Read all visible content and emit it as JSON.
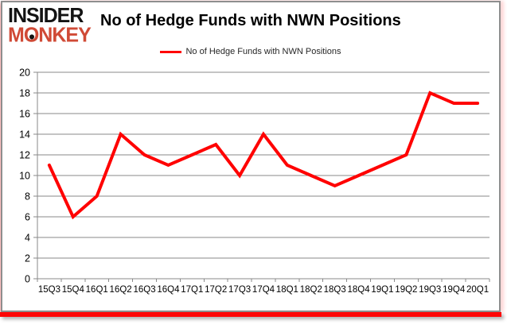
{
  "logo": {
    "line1": "INSIDER",
    "line2_m": "M",
    "line2_o": "O",
    "line2_rest": "NKEY"
  },
  "title": "No of Hedge Funds with NWN Positions",
  "legend": {
    "label": "No of Hedge Funds with NWN Positions"
  },
  "colors": {
    "line_red": "#ff0000",
    "logo_red": "#d04a36",
    "grid_gray": "#8a8a8a",
    "border_gray": "#8e8e8e",
    "band_red": "#fe0505"
  },
  "chart_data": {
    "type": "line",
    "title": "No of Hedge Funds with NWN Positions",
    "categories": [
      "15Q3",
      "15Q4",
      "16Q1",
      "16Q2",
      "16Q3",
      "16Q4",
      "17Q1",
      "17Q2",
      "17Q3",
      "17Q4",
      "18Q1",
      "18Q2",
      "18Q3",
      "18Q4",
      "19Q1",
      "19Q2",
      "19Q3",
      "19Q4",
      "20Q1"
    ],
    "series": [
      {
        "name": "No of Hedge Funds with NWN Positions",
        "color": "#ff0000",
        "values": [
          11,
          6,
          8,
          14,
          12,
          11,
          12,
          13,
          10,
          14,
          11,
          10,
          9,
          10,
          11,
          12,
          18,
          17,
          17
        ]
      }
    ],
    "xlabel": "",
    "ylabel": "",
    "ylim": [
      0,
      20
    ],
    "yticks": [
      0,
      2,
      4,
      6,
      8,
      10,
      12,
      14,
      16,
      18,
      20
    ],
    "grid": true,
    "legend_position": "top"
  }
}
